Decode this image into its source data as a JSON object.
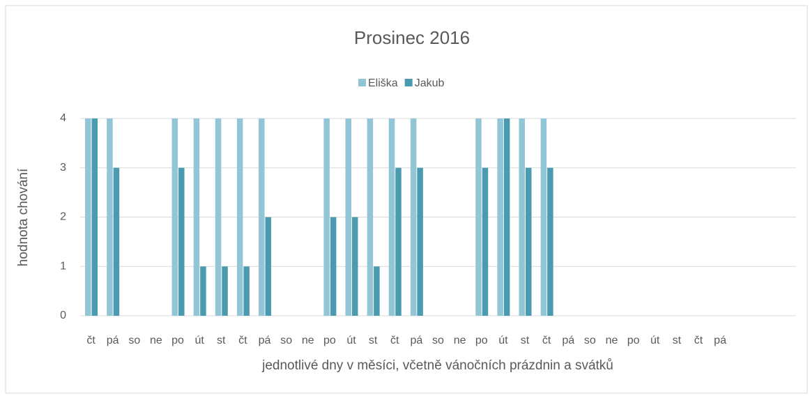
{
  "chart_data": {
    "type": "bar",
    "title": "Prosinec 2016",
    "x_label": "jednotlivé dny v měsíci, včetně vánočních prázdnin a svátků",
    "y_label": "hodnota chování",
    "categories": [
      "čt",
      "pá",
      "so",
      "ne",
      "po",
      "út",
      "st",
      "čt",
      "pá",
      "so",
      "ne",
      "po",
      "út",
      "st",
      "čt",
      "pá",
      "so",
      "ne",
      "po",
      "út",
      "st",
      "čt",
      "pá",
      "so",
      "ne",
      "po",
      "út",
      "st",
      "čt",
      "pá",
      null,
      null,
      null
    ],
    "series": [
      {
        "name": "Eliška",
        "color": "#92c5d6",
        "values": [
          4,
          4,
          null,
          null,
          4,
          4,
          4,
          4,
          4,
          null,
          null,
          4,
          4,
          4,
          4,
          4,
          null,
          null,
          4,
          4,
          4,
          4,
          null,
          null,
          null,
          null,
          null,
          null,
          null,
          null,
          null,
          null,
          null
        ]
      },
      {
        "name": "Jakub",
        "color": "#4a9bb0",
        "values": [
          4,
          3,
          null,
          null,
          3,
          1,
          1,
          1,
          2,
          null,
          null,
          2,
          2,
          1,
          3,
          3,
          null,
          null,
          3,
          4,
          3,
          3,
          null,
          null,
          null,
          null,
          null,
          null,
          null,
          null,
          null,
          null,
          null
        ]
      }
    ],
    "ylim": [
      0,
      4
    ],
    "yticks": [
      0,
      1,
      2,
      3,
      4
    ],
    "grid": true,
    "legend": "top"
  }
}
